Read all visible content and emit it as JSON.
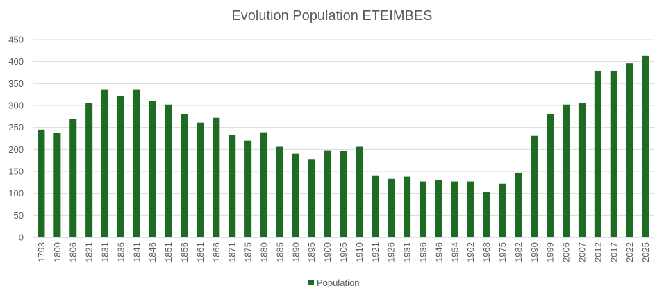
{
  "chart_data": {
    "type": "bar",
    "title": "Evolution Population ETEIMBES",
    "xlabel": "",
    "ylabel": "",
    "ylim": [
      0,
      450
    ],
    "yticks": [
      0,
      50,
      100,
      150,
      200,
      250,
      300,
      350,
      400,
      450
    ],
    "grid": true,
    "legend_position": "bottom",
    "color": "#1e6b23",
    "categories": [
      "1793",
      "1800",
      "1806",
      "1821",
      "1831",
      "1836",
      "1841",
      "1846",
      "1851",
      "1856",
      "1861",
      "1866",
      "1871",
      "1875",
      "1880",
      "1885",
      "1890",
      "1895",
      "1900",
      "1905",
      "1910",
      "1921",
      "1926",
      "1931",
      "1936",
      "1946",
      "1954",
      "1962",
      "1968",
      "1975",
      "1982",
      "1990",
      "1999",
      "2006",
      "2007",
      "2012",
      "2017",
      "2022",
      "2025"
    ],
    "series": [
      {
        "name": "Population",
        "values": [
          245,
          238,
          269,
          305,
          337,
          322,
          337,
          311,
          302,
          281,
          261,
          272,
          233,
          220,
          239,
          206,
          190,
          178,
          198,
          197,
          206,
          141,
          133,
          138,
          127,
          131,
          127,
          127,
          103,
          122,
          147,
          231,
          280,
          302,
          305,
          379,
          379,
          396,
          414
        ]
      }
    ]
  }
}
